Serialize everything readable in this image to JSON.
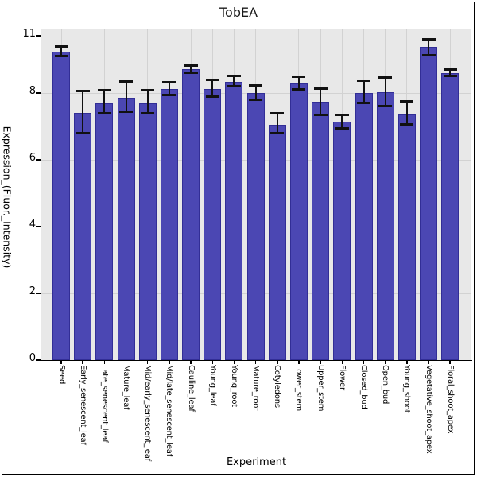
{
  "chart_data": {
    "type": "bar",
    "title": "TobEA",
    "xlabel": "Experiment",
    "ylabel": "Expression_(Fluor._Intensity)",
    "categories": [
      "Seed",
      "Early_senescent_leaf",
      "Late_senescent_leaf",
      "Mature_leaf",
      "Mid/early_senescent_leaf",
      "Mid/late_senescent_leaf",
      "Cauline_leaf",
      "Young_leaf",
      "Young_root",
      "Mature_root",
      "Cotyledons",
      "Lower_stem",
      "Upper_stem",
      "Flower",
      "Closed_bud",
      "Open_bud",
      "Young_shoot",
      "Vegetative_shoot_apex",
      "Floral_shoot_apex"
    ],
    "values": [
      10.15,
      7.4,
      7.7,
      7.85,
      7.7,
      8.2,
      9.25,
      8.2,
      8.6,
      8.0,
      7.05,
      8.5,
      7.75,
      7.15,
      8.0,
      8.05,
      7.35,
      10.4,
      9.05
    ],
    "error_low": [
      9.95,
      6.8,
      7.4,
      7.45,
      7.4,
      7.95,
      9.05,
      7.9,
      8.35,
      7.8,
      6.8,
      8.2,
      7.35,
      6.95,
      7.7,
      7.6,
      7.05,
      10.0,
      8.9
    ],
    "error_high": [
      10.45,
      8.1,
      8.15,
      8.6,
      8.15,
      8.55,
      9.45,
      8.7,
      8.9,
      8.4,
      7.4,
      8.85,
      8.25,
      7.35,
      8.65,
      8.8,
      7.75,
      10.8,
      9.25
    ],
    "y_ticks": [
      0,
      2,
      4,
      6,
      8,
      11
    ],
    "grid_y_values": [
      2,
      4,
      6,
      8
    ],
    "ylim": [
      0,
      11
    ],
    "grid": "on",
    "legend": "none",
    "error_bars": "yes",
    "colors": {
      "bar_fill": "#4b47b3",
      "bar_edge": "#322e96",
      "error_bar": "#111111",
      "panel_bg": "#e8e8e8",
      "grid_line": "#d2d2d2",
      "axis_line": "#000000",
      "figure_bg": "#ffffff",
      "figure_border": "#000000",
      "text": "#000000"
    }
  }
}
